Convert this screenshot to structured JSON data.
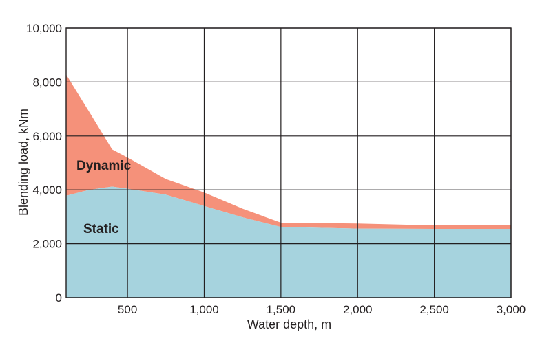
{
  "chart_data": {
    "type": "area",
    "title": "",
    "xlabel": "Water depth, m",
    "ylabel": "Blending load, kNm",
    "xlim": [
      100,
      3000
    ],
    "ylim": [
      0,
      10000
    ],
    "x_ticks": [
      500,
      1000,
      1500,
      2000,
      2500,
      3000
    ],
    "x_tick_labels": [
      "500",
      "1,000",
      "1,500",
      "2,000",
      "2,500",
      "3,000"
    ],
    "y_ticks": [
      0,
      2000,
      4000,
      6000,
      8000,
      10000
    ],
    "y_tick_labels": [
      "0",
      "2,000",
      "4,000",
      "6,000",
      "8,000",
      "10,000"
    ],
    "grid": true,
    "stacked": true,
    "series": [
      {
        "name": "Static",
        "color": "#a6d3de",
        "points": [
          [
            100,
            3780
          ],
          [
            250,
            4000
          ],
          [
            400,
            4120
          ],
          [
            500,
            4040
          ],
          [
            750,
            3820
          ],
          [
            1000,
            3400
          ],
          [
            1250,
            2980
          ],
          [
            1500,
            2620
          ],
          [
            2000,
            2560
          ],
          [
            2500,
            2550
          ],
          [
            3000,
            2550
          ]
        ]
      },
      {
        "name": "Dynamic",
        "color": "#f5917a",
        "upper_points": [
          [
            100,
            8280
          ],
          [
            250,
            6900
          ],
          [
            400,
            5500
          ],
          [
            500,
            5200
          ],
          [
            750,
            4400
          ],
          [
            1000,
            3900
          ],
          [
            1250,
            3300
          ],
          [
            1500,
            2780
          ],
          [
            2000,
            2750
          ],
          [
            2500,
            2680
          ],
          [
            3000,
            2680
          ]
        ]
      }
    ],
    "labels": {
      "dynamic": "Dynamic",
      "static": "Static"
    }
  }
}
